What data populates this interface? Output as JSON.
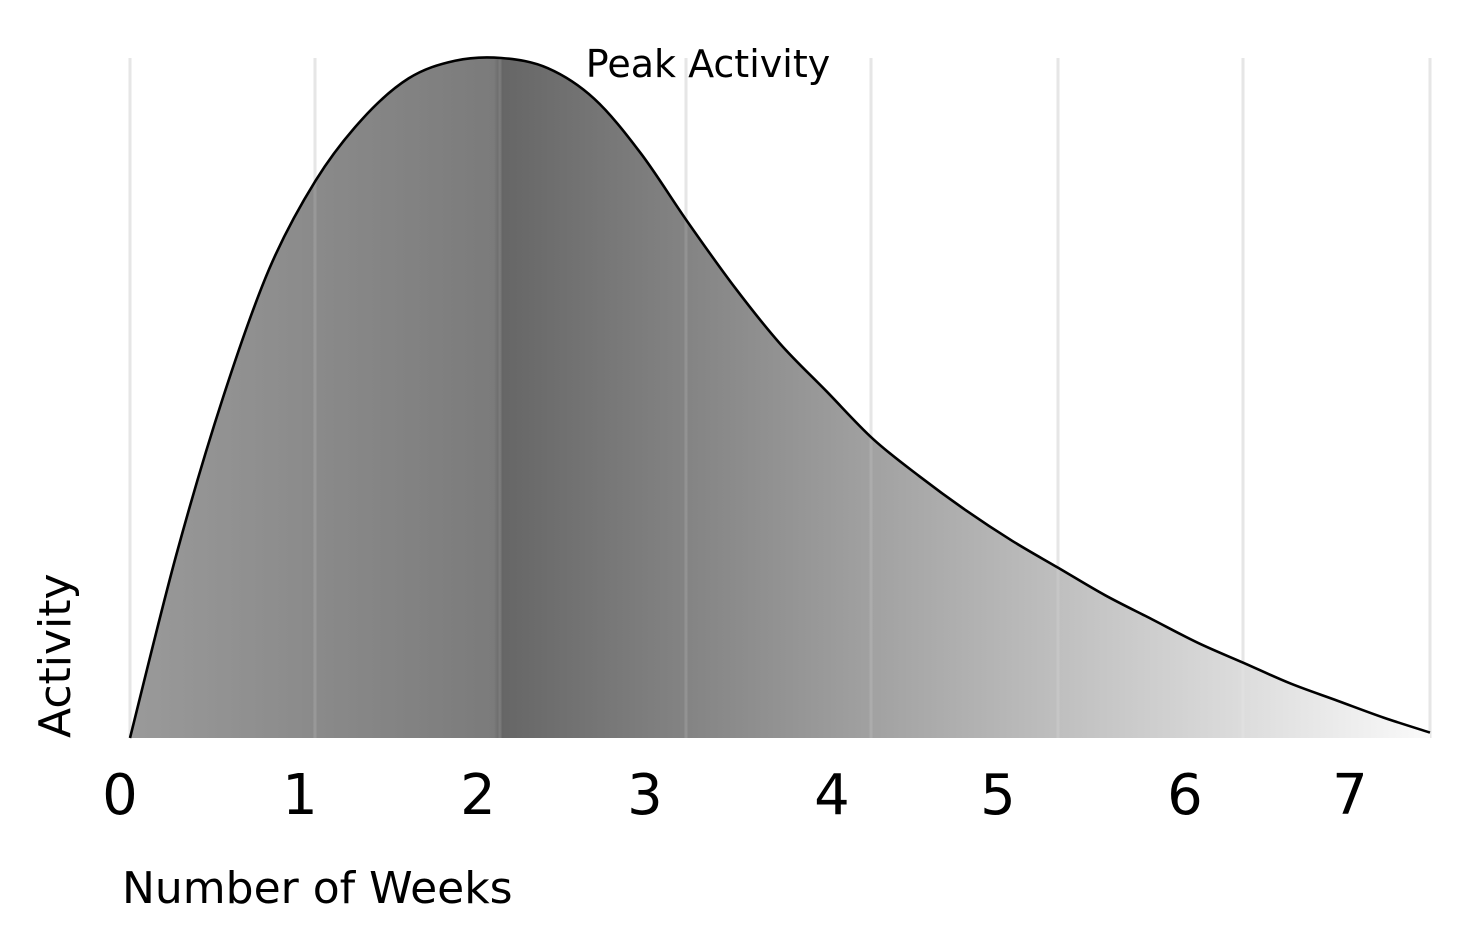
{
  "chart_data": {
    "type": "area",
    "title": "",
    "xlabel": "Number of Weeks",
    "ylabel": "Activity",
    "x_ticks": [
      "0",
      "1",
      "2",
      "3",
      "4",
      "5",
      "6",
      "7"
    ],
    "xlim": [
      0,
      7
    ],
    "ylim": [
      0,
      1
    ],
    "grid": "vertical",
    "annotation": {
      "text": "Peak Activity",
      "x": 2
    },
    "series": [
      {
        "x": [
          0,
          0.25,
          0.5,
          0.75,
          1,
          1.25,
          1.5,
          1.75,
          2,
          2.25,
          2.5,
          2.75,
          3,
          3.25,
          3.5,
          3.75,
          4,
          4.25,
          4.5,
          4.75,
          5,
          5.25,
          5.5,
          5.75,
          6,
          6.25,
          6.5,
          6.75,
          7
        ],
        "values": [
          0,
          0.27,
          0.5,
          0.69,
          0.82,
          0.91,
          0.97,
          0.996,
          1.0,
          0.985,
          0.94,
          0.86,
          0.76,
          0.665,
          0.58,
          0.51,
          0.44,
          0.385,
          0.335,
          0.29,
          0.25,
          0.21,
          0.175,
          0.14,
          0.11,
          0.08,
          0.055,
          0.03,
          0.008
        ]
      }
    ],
    "colors": {
      "grid": "#e3e3e3",
      "line": "#000000",
      "fill_light_start": "#9a9a9a",
      "fill_dark": "#666666",
      "fill_end": "#fafafa"
    }
  }
}
